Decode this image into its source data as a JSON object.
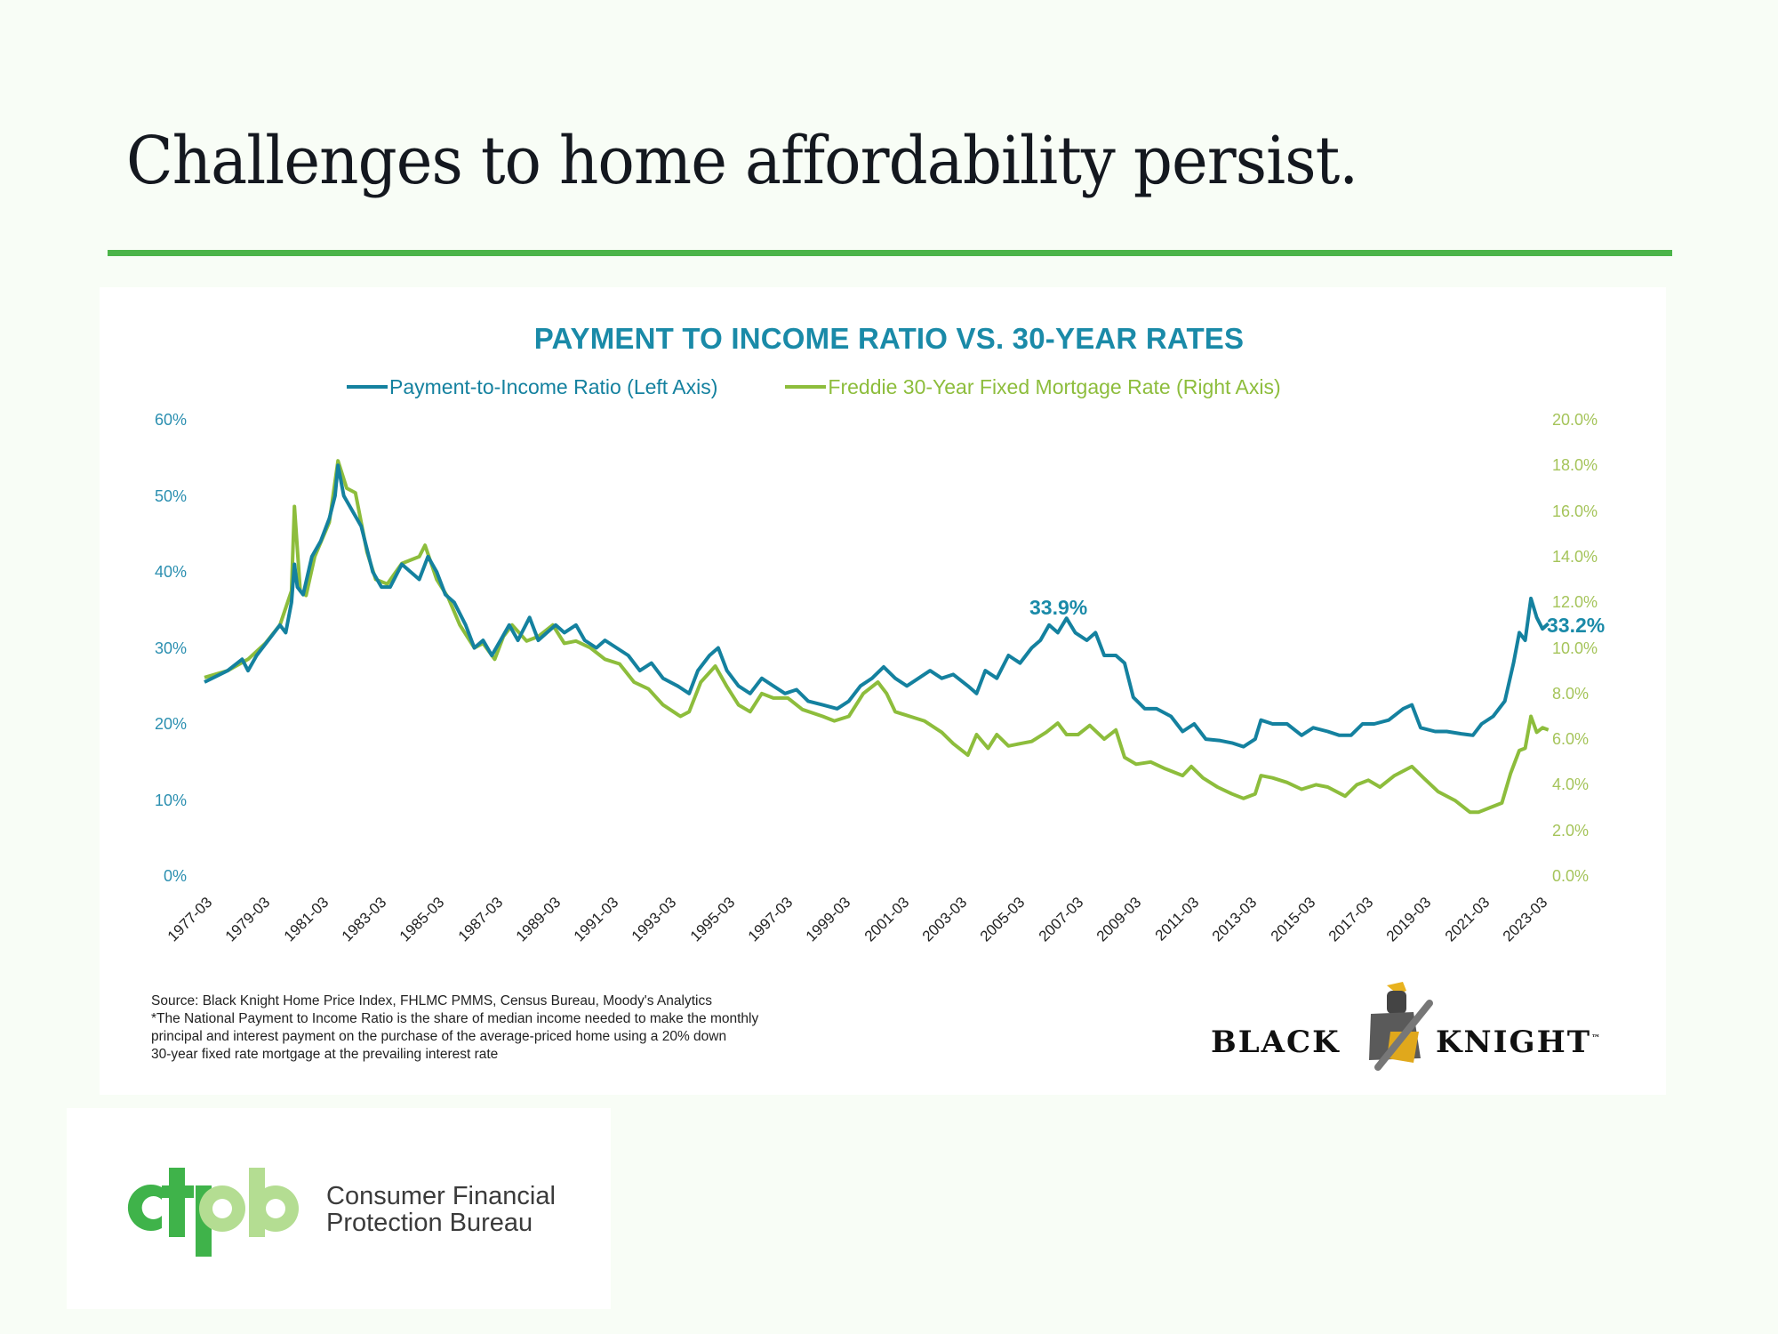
{
  "slide": {
    "title": "Challenges to home affordability persist.",
    "accent_color": "#4bb449",
    "background": "#f8fdf6"
  },
  "chart": {
    "title": "PAYMENT TO INCOME RATIO VS. 30-YEAR RATES",
    "legend": [
      {
        "label": "Payment-to-Income Ratio (Left Axis)",
        "color": "#14819f"
      },
      {
        "label": "Freddie 30-Year Fixed Mortgage Rate (Right Axis)",
        "color": "#8dbd3c"
      }
    ],
    "left_ticks": [
      "60%",
      "50%",
      "40%",
      "30%",
      "20%",
      "10%",
      "0%"
    ],
    "right_ticks": [
      "20.0%",
      "18.0%",
      "16.0%",
      "14.0%",
      "12.0%",
      "10.0%",
      "8.0%",
      "6.0%",
      "4.0%",
      "2.0%",
      "0.0%"
    ],
    "x_ticks": [
      "1977-03",
      "1979-03",
      "1981-03",
      "1983-03",
      "1985-03",
      "1987-03",
      "1989-03",
      "1991-03",
      "1993-03",
      "1995-03",
      "1997-03",
      "1999-03",
      "2001-03",
      "2003-03",
      "2005-03",
      "2007-03",
      "2009-03",
      "2011-03",
      "2013-03",
      "2015-03",
      "2017-03",
      "2019-03",
      "2021-03",
      "2023-03"
    ],
    "annotations": {
      "peak_2006": "33.9%",
      "latest": "33.2%"
    },
    "source_lines": [
      "Source: Black Knight Home Price Index, FHLMC PMMS, Census Bureau, Moody's Analytics",
      "*The National Payment to Income Ratio is the share of median income needed to make the monthly",
      "principal and interest payment on the purchase of the average-priced home using a 20% down",
      "30-year fixed rate mortgage at the prevailing interest rate"
    ]
  },
  "logos": {
    "black_knight": {
      "left": "BLACK",
      "right": "KNIGHT",
      "mark": "™"
    },
    "cfpb": {
      "mark": "cfpb",
      "line1": "Consumer Financial",
      "line2": "Protection Bureau"
    }
  },
  "chart_data": {
    "type": "line",
    "title": "PAYMENT TO INCOME RATIO VS. 30-YEAR RATES",
    "xlabel": "",
    "ylabel_left": "Payment-to-Income Ratio",
    "ylabel_right": "Freddie 30-Year Fixed Mortgage Rate",
    "ylim_left": [
      0,
      60
    ],
    "ylim_right": [
      0,
      20
    ],
    "x_range": [
      1977.17,
      2023.5
    ],
    "x_tick_labels": [
      "1977-03",
      "1979-03",
      "1981-03",
      "1983-03",
      "1985-03",
      "1987-03",
      "1989-03",
      "1991-03",
      "1993-03",
      "1995-03",
      "1997-03",
      "1999-03",
      "2001-03",
      "2003-03",
      "2005-03",
      "2007-03",
      "2009-03",
      "2011-03",
      "2013-03",
      "2015-03",
      "2017-03",
      "2019-03",
      "2021-03",
      "2023-03"
    ],
    "grid": false,
    "legend_position": "top",
    "annotations": [
      {
        "text": "33.9%",
        "x": 2006.9,
        "series": "Payment-to-Income Ratio (Left Axis)"
      },
      {
        "text": "33.2%",
        "x": 2023.5,
        "series": "Payment-to-Income Ratio (Left Axis)"
      }
    ],
    "series": [
      {
        "name": "Payment-to-Income Ratio (Left Axis)",
        "axis": "left",
        "color": "#14819f",
        "x": [
          1977.2,
          1978,
          1978.5,
          1978.7,
          1979,
          1979.5,
          1979.8,
          1980,
          1980.2,
          1980.3,
          1980.4,
          1980.6,
          1980.9,
          1981.2,
          1981.5,
          1981.7,
          1981.8,
          1982,
          1982.3,
          1982.6,
          1983,
          1983.3,
          1983.6,
          1984,
          1984.3,
          1984.6,
          1984.9,
          1985.2,
          1985.5,
          1985.8,
          1986.2,
          1986.5,
          1986.8,
          1987.1,
          1987.4,
          1987.7,
          1988,
          1988.4,
          1988.7,
          1989,
          1989.3,
          1989.6,
          1990,
          1990.3,
          1990.7,
          1991,
          1991.4,
          1991.8,
          1992.2,
          1992.6,
          1993,
          1993.5,
          1993.9,
          1994.2,
          1994.6,
          1994.9,
          1995.2,
          1995.6,
          1996,
          1996.4,
          1996.8,
          1997.2,
          1997.6,
          1998,
          1998.5,
          1999,
          1999.4,
          1999.8,
          2000.2,
          2000.6,
          2001,
          2001.4,
          2001.8,
          2002.2,
          2002.6,
          2003,
          2003.5,
          2003.8,
          2004.1,
          2004.5,
          2004.9,
          2005.3,
          2005.7,
          2006,
          2006.3,
          2006.6,
          2006.9,
          2007.2,
          2007.6,
          2007.9,
          2008.2,
          2008.6,
          2008.9,
          2009.2,
          2009.6,
          2010,
          2010.5,
          2010.9,
          2011.3,
          2011.7,
          2012.2,
          2012.6,
          2013,
          2013.4,
          2013.6,
          2014,
          2014.5,
          2015,
          2015.4,
          2015.9,
          2016.3,
          2016.7,
          2017.1,
          2017.5,
          2018,
          2018.5,
          2018.8,
          2019.1,
          2019.6,
          2020,
          2020.5,
          2020.9,
          2021.2,
          2021.6,
          2022,
          2022.3,
          2022.5,
          2022.7,
          2022.9,
          2023.1,
          2023.3,
          2023.5
        ],
        "values": [
          25.5,
          27,
          28.5,
          27,
          29,
          31.5,
          33,
          32,
          36,
          41,
          38,
          37,
          42,
          44,
          47,
          50,
          54,
          50,
          48,
          46,
          40,
          38,
          38,
          41,
          40,
          39,
          42,
          40,
          37,
          36,
          33,
          30,
          31,
          29,
          31,
          33,
          31,
          34,
          31,
          32,
          33,
          32,
          33,
          31,
          30,
          31,
          30,
          29,
          27,
          28,
          26,
          25,
          24,
          27,
          29,
          30,
          27,
          25,
          24,
          26,
          25,
          24,
          24.5,
          23,
          22.5,
          22,
          23,
          25,
          26,
          27.5,
          26,
          25,
          26,
          27,
          26,
          26.5,
          25,
          24,
          27,
          26,
          29,
          28,
          30,
          31,
          33,
          32,
          33.9,
          32,
          31,
          32,
          29,
          29,
          28,
          23.5,
          22,
          22,
          21,
          19,
          20,
          18,
          17.8,
          17.5,
          17,
          18,
          20.5,
          20,
          20,
          18.5,
          19.5,
          19,
          18.5,
          18.5,
          20,
          20,
          20.5,
          22,
          22.5,
          19.5,
          19,
          19,
          18.7,
          18.5,
          20,
          21,
          23,
          28,
          32,
          31,
          36.5,
          34,
          32.5,
          33.2
        ]
      },
      {
        "name": "Freddie 30-Year Fixed Mortgage Rate (Right Axis)",
        "axis": "right",
        "color": "#8dbd3c",
        "x": [
          1977.2,
          1978,
          1978.7,
          1979.3,
          1979.8,
          1980.2,
          1980.3,
          1980.5,
          1980.7,
          1981,
          1981.5,
          1981.8,
          1982.1,
          1982.4,
          1982.8,
          1983.1,
          1983.5,
          1984,
          1984.6,
          1984.8,
          1985.2,
          1985.6,
          1986,
          1986.5,
          1986.8,
          1987.2,
          1987.5,
          1987.8,
          1988.3,
          1988.7,
          1989.2,
          1989.6,
          1990,
          1990.5,
          1991,
          1991.5,
          1992,
          1992.5,
          1993,
          1993.6,
          1993.9,
          1994.3,
          1994.8,
          1995.2,
          1995.6,
          1996,
          1996.4,
          1996.8,
          1997.3,
          1997.8,
          1998.5,
          1998.9,
          1999.4,
          1999.9,
          2000.4,
          2000.7,
          2001,
          2001.5,
          2002,
          2002.6,
          2003,
          2003.5,
          2003.8,
          2004.2,
          2004.5,
          2004.9,
          2005.3,
          2005.7,
          2006.2,
          2006.6,
          2006.9,
          2007.3,
          2007.7,
          2008.2,
          2008.6,
          2008.9,
          2009.3,
          2009.8,
          2010.3,
          2010.9,
          2011.2,
          2011.6,
          2012.1,
          2012.6,
          2013,
          2013.4,
          2013.6,
          2014,
          2014.5,
          2015,
          2015.5,
          2015.9,
          2016.5,
          2016.9,
          2017.3,
          2017.7,
          2018.2,
          2018.8,
          2019.2,
          2019.7,
          2020.3,
          2020.8,
          2021.1,
          2021.5,
          2021.9,
          2022.2,
          2022.5,
          2022.7,
          2022.9,
          2023.1,
          2023.3,
          2023.5
        ],
        "values": [
          8.7,
          9.0,
          9.5,
          10.2,
          11,
          12.5,
          16.2,
          12.5,
          12.3,
          14,
          15.5,
          18.2,
          17,
          16.8,
          14.2,
          13,
          12.8,
          13.7,
          14.0,
          14.5,
          13,
          12.2,
          11,
          10,
          10.2,
          9.5,
          10.5,
          11,
          10.3,
          10.5,
          11,
          10.2,
          10.3,
          10.0,
          9.5,
          9.3,
          8.5,
          8.2,
          7.5,
          7.0,
          7.2,
          8.5,
          9.2,
          8.3,
          7.5,
          7.2,
          8.0,
          7.8,
          7.8,
          7.3,
          7.0,
          6.8,
          7.0,
          8.0,
          8.5,
          8.0,
          7.2,
          7.0,
          6.8,
          6.3,
          5.8,
          5.3,
          6.2,
          5.6,
          6.2,
          5.7,
          5.8,
          5.9,
          6.3,
          6.7,
          6.2,
          6.2,
          6.6,
          6.0,
          6.4,
          5.2,
          4.9,
          5.0,
          4.7,
          4.4,
          4.8,
          4.3,
          3.9,
          3.6,
          3.4,
          3.6,
          4.4,
          4.3,
          4.1,
          3.8,
          4.0,
          3.9,
          3.5,
          4.0,
          4.2,
          3.9,
          4.4,
          4.8,
          4.3,
          3.7,
          3.3,
          2.8,
          2.8,
          3.0,
          3.2,
          4.5,
          5.5,
          5.6,
          7.0,
          6.3,
          6.5,
          6.4
        ]
      }
    ]
  }
}
